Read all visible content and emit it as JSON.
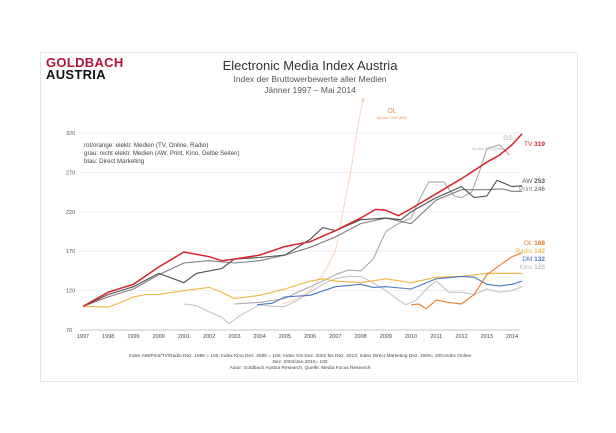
{
  "logo": {
    "line1": "GOLDBACH",
    "line2": "AUSTRIA"
  },
  "chart_data": {
    "type": "line",
    "title": "Electronic Media Index Austria",
    "subtitle": [
      "Index der Bruttowerbewerte aller Medien",
      "Jänner 1997 –  Mai 2014"
    ],
    "legend_notes": [
      "rot/orange: elektr. Medien (TV, Online, Radio)",
      "grau: nicht elektr. Medien (AW, Print, Kino, Gelbe Seiten)",
      "blau: Direct Marketing"
    ],
    "footnote": [
      "Index AW/Print/TV/Radio Dez. 1996 = 100; Index Kino Dez. 2000 = 100; Index GS Dez. 2002 bis Dez. 2013; Index Direct Marketing Dez. 2009= 100;Index Online",
      "Dez. 2004/Jan 2010= 100",
      "Autor: Goldbach Austria Research, Quelle: Media Focus Research"
    ],
    "xlim": [
      1997,
      2014.4
    ],
    "ylim": [
      70,
      320
    ],
    "x_ticks": [
      "1997",
      "1998",
      "1999",
      "2000",
      "2001",
      "2002",
      "2003",
      "2004",
      "2005",
      "2006",
      "2007",
      "2008",
      "2009",
      "2010",
      "2011",
      "2012",
      "2013",
      "2014"
    ],
    "y_ticks": [
      70,
      120,
      170,
      220,
      270,
      320
    ],
    "grid": "horizontal",
    "series": [
      {
        "name": "OL",
        "end_label": "bis Dez 2009 (625)",
        "color": "#f0a878",
        "dashed": true,
        "points": [
          [
            2004.9,
            103
          ],
          [
            2005.5,
            110
          ],
          [
            2006,
            120
          ],
          [
            2006.5,
            140
          ],
          [
            2007,
            170
          ],
          [
            2007.3,
            220
          ],
          [
            2007.6,
            270
          ],
          [
            2007.9,
            330
          ],
          [
            2008.1,
            364
          ]
        ]
      },
      {
        "name": "Kino",
        "value": 125,
        "color": "#c4c4c4",
        "points": [
          [
            2001,
            103
          ],
          [
            2001.5,
            101
          ],
          [
            2002,
            93
          ],
          [
            2002.5,
            86
          ],
          [
            2002.8,
            78
          ],
          [
            2003.2,
            88
          ],
          [
            2003.6,
            95
          ],
          [
            2004,
            102
          ],
          [
            2004.5,
            100
          ],
          [
            2005,
            100
          ],
          [
            2005.5,
            108
          ],
          [
            2006,
            118
          ],
          [
            2006.5,
            128
          ],
          [
            2007,
            135
          ],
          [
            2007.5,
            138
          ],
          [
            2008,
            138
          ],
          [
            2008.5,
            130
          ],
          [
            2009,
            120
          ],
          [
            2009.5,
            108
          ],
          [
            2009.8,
            102
          ],
          [
            2010.2,
            108
          ],
          [
            2010.7,
            125
          ],
          [
            2011,
            132
          ],
          [
            2011.5,
            118
          ],
          [
            2012,
            118
          ],
          [
            2012.5,
            115
          ],
          [
            2013,
            122
          ],
          [
            2013.5,
            118
          ],
          [
            2014,
            120
          ],
          [
            2014.4,
            125
          ]
        ]
      },
      {
        "name": "GS",
        "end_label": "bis Dez 2013 (296)",
        "color": "#aaaaaa",
        "points": [
          [
            2003,
            103
          ],
          [
            2004,
            105
          ],
          [
            2005,
            110
          ],
          [
            2005.5,
            118
          ],
          [
            2006,
            125
          ],
          [
            2006.5,
            132
          ],
          [
            2007,
            140
          ],
          [
            2007.5,
            146
          ],
          [
            2008,
            145
          ],
          [
            2008.5,
            160
          ],
          [
            2009,
            195
          ],
          [
            2009.5,
            205
          ],
          [
            2010,
            212
          ],
          [
            2010.4,
            240
          ],
          [
            2010.7,
            258
          ],
          [
            2011.3,
            258
          ],
          [
            2011.7,
            240
          ],
          [
            2012,
            238
          ],
          [
            2012.4,
            245
          ],
          [
            2012.7,
            270
          ],
          [
            2013,
            300
          ],
          [
            2013.5,
            305
          ],
          [
            2013.9,
            292
          ]
        ]
      },
      {
        "name": "Print",
        "value": 246,
        "color": "#7e7e7e",
        "points": [
          [
            1997,
            100
          ],
          [
            1998,
            112
          ],
          [
            1999,
            122
          ],
          [
            2000,
            140
          ],
          [
            2001,
            155
          ],
          [
            2002,
            158
          ],
          [
            2003,
            155
          ],
          [
            2004,
            158
          ],
          [
            2005,
            165
          ],
          [
            2006,
            175
          ],
          [
            2007,
            188
          ],
          [
            2008,
            205
          ],
          [
            2009,
            212
          ],
          [
            2010,
            205
          ],
          [
            2011,
            235
          ],
          [
            2012,
            248
          ],
          [
            2013,
            248
          ],
          [
            2013.6,
            249
          ],
          [
            2014,
            246
          ],
          [
            2014.4,
            246
          ]
        ]
      },
      {
        "name": "AW",
        "value": 253,
        "color": "#505050",
        "points": [
          [
            1997,
            100
          ],
          [
            1998,
            115
          ],
          [
            1999,
            125
          ],
          [
            2000,
            142
          ],
          [
            2000.5,
            136
          ],
          [
            2001,
            130
          ],
          [
            2001.5,
            142
          ],
          [
            2002,
            145
          ],
          [
            2002.5,
            148
          ],
          [
            2003,
            160
          ],
          [
            2004,
            162
          ],
          [
            2005,
            165
          ],
          [
            2006,
            185
          ],
          [
            2006.5,
            200
          ],
          [
            2007,
            196
          ],
          [
            2008,
            210
          ],
          [
            2009,
            212
          ],
          [
            2009.6,
            210
          ],
          [
            2010,
            220
          ],
          [
            2011,
            238
          ],
          [
            2012,
            252
          ],
          [
            2012.5,
            238
          ],
          [
            2013,
            240
          ],
          [
            2013.4,
            260
          ],
          [
            2014,
            252
          ],
          [
            2014.4,
            253
          ]
        ]
      },
      {
        "name": "Radio",
        "value": 142,
        "color": "#f0b440",
        "points": [
          [
            1997,
            100
          ],
          [
            1998,
            99
          ],
          [
            1998.5,
            105
          ],
          [
            1999,
            112
          ],
          [
            1999.5,
            115
          ],
          [
            2000,
            115
          ],
          [
            2001,
            120
          ],
          [
            2002,
            124
          ],
          [
            2002.5,
            118
          ],
          [
            2003,
            110
          ],
          [
            2004,
            114
          ],
          [
            2005,
            122
          ],
          [
            2006,
            132
          ],
          [
            2006.5,
            135
          ],
          [
            2007,
            132
          ],
          [
            2008,
            130
          ],
          [
            2009,
            135
          ],
          [
            2010,
            130
          ],
          [
            2011,
            137
          ],
          [
            2012,
            138
          ],
          [
            2013,
            142
          ],
          [
            2014,
            142
          ],
          [
            2014.4,
            142
          ]
        ]
      },
      {
        "name": "DM",
        "value": 132,
        "color": "#4a78c0",
        "points": [
          [
            2003.9,
            102
          ],
          [
            2004.5,
            104
          ],
          [
            2005,
            112
          ],
          [
            2006,
            114
          ],
          [
            2007,
            125
          ],
          [
            2008,
            128
          ],
          [
            2008.5,
            124
          ],
          [
            2009,
            125
          ],
          [
            2010,
            122
          ],
          [
            2011,
            135
          ],
          [
            2012,
            138
          ],
          [
            2012.5,
            137
          ],
          [
            2013,
            128
          ],
          [
            2013.5,
            126
          ],
          [
            2014,
            128
          ],
          [
            2014.4,
            132
          ]
        ]
      },
      {
        "name": "OL",
        "value": 168,
        "color": "#e87a2a",
        "points": [
          [
            2010,
            102
          ],
          [
            2010.3,
            103
          ],
          [
            2010.6,
            97
          ],
          [
            2011,
            108
          ],
          [
            2011.5,
            105
          ],
          [
            2012,
            103
          ],
          [
            2012.5,
            115
          ],
          [
            2013,
            140
          ],
          [
            2013.5,
            152
          ],
          [
            2014,
            163
          ],
          [
            2014.4,
            168
          ]
        ]
      },
      {
        "name": "TV",
        "value": 319,
        "color": "#d6232e",
        "points": [
          [
            1997,
            100
          ],
          [
            1998,
            118
          ],
          [
            1999,
            128
          ],
          [
            2000,
            150
          ],
          [
            2001,
            169
          ],
          [
            2002,
            163
          ],
          [
            2002.5,
            158
          ],
          [
            2003,
            160
          ],
          [
            2004,
            165
          ],
          [
            2005,
            176
          ],
          [
            2006,
            182
          ],
          [
            2007,
            196
          ],
          [
            2008,
            212
          ],
          [
            2008.6,
            223
          ],
          [
            2009,
            222
          ],
          [
            2009.5,
            215
          ],
          [
            2010,
            224
          ],
          [
            2011,
            243
          ],
          [
            2012,
            262
          ],
          [
            2013,
            283
          ],
          [
            2013.5,
            292
          ],
          [
            2014,
            305
          ],
          [
            2014.4,
            319
          ]
        ]
      }
    ]
  }
}
